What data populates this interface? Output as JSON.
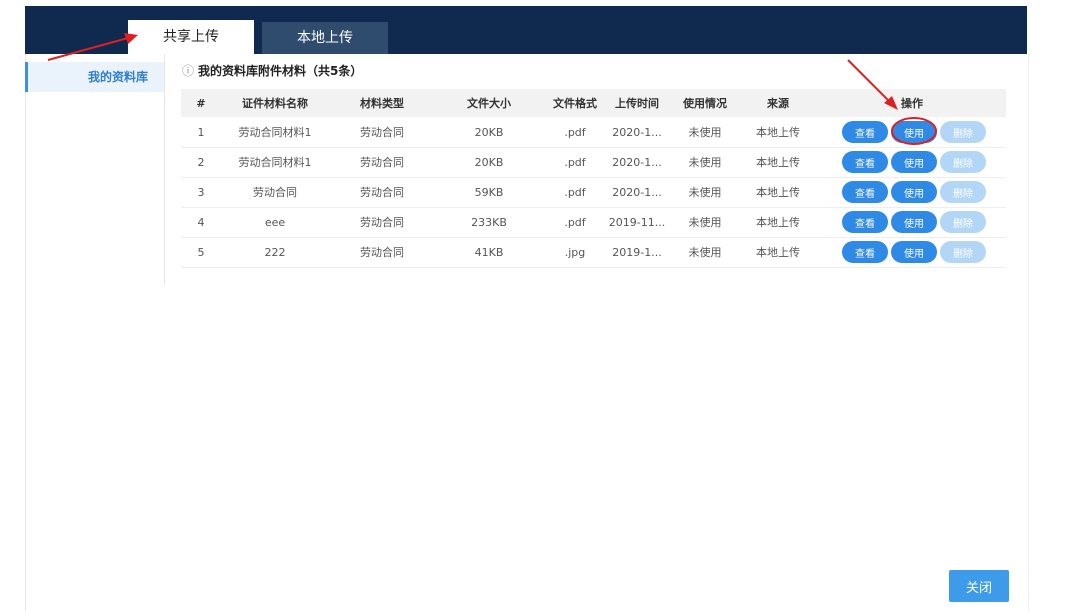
{
  "tabs": [
    "共享上传",
    "本地上传"
  ],
  "sidebar": {
    "items": [
      "我的资料库"
    ]
  },
  "content": {
    "heading": "我的资料库附件材料（共5条）"
  },
  "table": {
    "headers": [
      "#",
      "证件材料名称",
      "材料类型",
      "文件大小",
      "文件格式",
      "上传时间",
      "使用情况",
      "来源",
      "操作"
    ],
    "rows": [
      [
        "1",
        "劳动合同材料1",
        "劳动合同",
        "20KB",
        ".pdf",
        "2020-1...",
        "未使用",
        "本地上传"
      ],
      [
        "2",
        "劳动合同材料1",
        "劳动合同",
        "20KB",
        ".pdf",
        "2020-1...",
        "未使用",
        "本地上传"
      ],
      [
        "3",
        "劳动合同",
        "劳动合同",
        "59KB",
        ".pdf",
        "2020-1...",
        "未使用",
        "本地上传"
      ],
      [
        "4",
        "eee",
        "劳动合同",
        "233KB",
        ".pdf",
        "2019-11...",
        "未使用",
        "本地上传"
      ],
      [
        "5",
        "222",
        "劳动合同",
        "41KB",
        ".jpg",
        "2019-1...",
        "未使用",
        "本地上传"
      ]
    ],
    "actions": [
      "查看",
      "使用",
      "删除"
    ]
  },
  "footer": {
    "close": "关闭"
  }
}
